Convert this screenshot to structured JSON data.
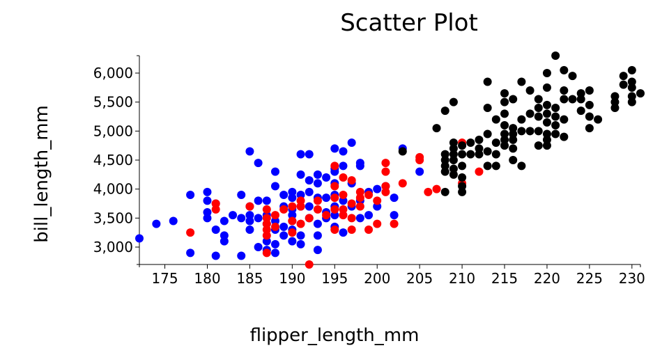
{
  "chart_data": {
    "type": "scatter",
    "title": "Scatter Plot",
    "xlabel": "flipper_length_mm",
    "ylabel": "bill_length_mm",
    "xlim": [
      172,
      231
    ],
    "ylim": [
      2700,
      6300
    ],
    "xticks": [
      175,
      180,
      185,
      190,
      195,
      200,
      205,
      210,
      215,
      220,
      225,
      230
    ],
    "yticks": [
      3000,
      3500,
      4000,
      4500,
      5000,
      5500,
      6000
    ],
    "grid": false,
    "series": [
      {
        "color": "#0000ff",
        "points": [
          [
            172,
            3150
          ],
          [
            174,
            3400
          ],
          [
            176,
            3450
          ],
          [
            178,
            2900
          ],
          [
            178,
            3900
          ],
          [
            180,
            3950
          ],
          [
            180,
            3800
          ],
          [
            180,
            3600
          ],
          [
            180,
            3500
          ],
          [
            181,
            3300
          ],
          [
            181,
            3750
          ],
          [
            181,
            2850
          ],
          [
            182,
            3200
          ],
          [
            182,
            3450
          ],
          [
            182,
            3100
          ],
          [
            183,
            3550
          ],
          [
            184,
            3500
          ],
          [
            184,
            3900
          ],
          [
            184,
            2850
          ],
          [
            185,
            3450
          ],
          [
            185,
            4650
          ],
          [
            185,
            3550
          ],
          [
            185,
            3300
          ],
          [
            185,
            3700
          ],
          [
            186,
            3000
          ],
          [
            186,
            4450
          ],
          [
            186,
            3800
          ],
          [
            186,
            3500
          ],
          [
            187,
            3550
          ],
          [
            187,
            3100
          ],
          [
            187,
            3800
          ],
          [
            187,
            3400
          ],
          [
            187,
            2950
          ],
          [
            188,
            3300
          ],
          [
            188,
            4300
          ],
          [
            188,
            4050
          ],
          [
            188,
            3450
          ],
          [
            188,
            3050
          ],
          [
            188,
            2900
          ],
          [
            189,
            3900
          ],
          [
            189,
            3700
          ],
          [
            189,
            3350
          ],
          [
            189,
            3200
          ],
          [
            190,
            3950
          ],
          [
            190,
            3550
          ],
          [
            190,
            3300
          ],
          [
            190,
            3100
          ],
          [
            190,
            3850
          ],
          [
            190,
            3650
          ],
          [
            190,
            3450
          ],
          [
            191,
            4600
          ],
          [
            191,
            4250
          ],
          [
            191,
            3700
          ],
          [
            191,
            3900
          ],
          [
            191,
            3200
          ],
          [
            191,
            3050
          ],
          [
            192,
            4600
          ],
          [
            192,
            4150
          ],
          [
            192,
            3950
          ],
          [
            192,
            3700
          ],
          [
            192,
            3500
          ],
          [
            193,
            4100
          ],
          [
            193,
            4250
          ],
          [
            193,
            3850
          ],
          [
            193,
            3400
          ],
          [
            193,
            3200
          ],
          [
            193,
            2950
          ],
          [
            194,
            4200
          ],
          [
            194,
            3850
          ],
          [
            194,
            3600
          ],
          [
            194,
            3500
          ],
          [
            195,
            4700
          ],
          [
            195,
            4300
          ],
          [
            195,
            4100
          ],
          [
            195,
            4350
          ],
          [
            195,
            3900
          ],
          [
            195,
            3700
          ],
          [
            195,
            3550
          ],
          [
            195,
            3350
          ],
          [
            196,
            4650
          ],
          [
            196,
            4400
          ],
          [
            196,
            3800
          ],
          [
            196,
            3250
          ],
          [
            197,
            4800
          ],
          [
            197,
            4100
          ],
          [
            197,
            3700
          ],
          [
            198,
            4400
          ],
          [
            198,
            4450
          ],
          [
            198,
            3800
          ],
          [
            198,
            3500
          ],
          [
            199,
            3950
          ],
          [
            199,
            3550
          ],
          [
            200,
            4000
          ],
          [
            200,
            3700
          ],
          [
            201,
            4050
          ],
          [
            202,
            3850
          ],
          [
            202,
            3550
          ],
          [
            203,
            4700
          ],
          [
            205,
            4300
          ]
        ]
      },
      {
        "color": "#ff0000",
        "points": [
          [
            178,
            3250
          ],
          [
            181,
            3650
          ],
          [
            181,
            3750
          ],
          [
            185,
            3700
          ],
          [
            187,
            3650
          ],
          [
            187,
            3500
          ],
          [
            187,
            3400
          ],
          [
            187,
            3300
          ],
          [
            187,
            3200
          ],
          [
            187,
            2900
          ],
          [
            188,
            3550
          ],
          [
            188,
            3350
          ],
          [
            189,
            3650
          ],
          [
            190,
            3700
          ],
          [
            190,
            3450
          ],
          [
            190,
            3250
          ],
          [
            191,
            3800
          ],
          [
            191,
            3400
          ],
          [
            191,
            3700
          ],
          [
            192,
            2700
          ],
          [
            192,
            3500
          ],
          [
            193,
            3800
          ],
          [
            193,
            3650
          ],
          [
            194,
            3550
          ],
          [
            195,
            4400
          ],
          [
            195,
            4050
          ],
          [
            195,
            3850
          ],
          [
            195,
            3650
          ],
          [
            195,
            3300
          ],
          [
            196,
            4200
          ],
          [
            196,
            3900
          ],
          [
            196,
            3650
          ],
          [
            196,
            3550
          ],
          [
            197,
            4150
          ],
          [
            197,
            3750
          ],
          [
            197,
            3500
          ],
          [
            197,
            3300
          ],
          [
            198,
            3950
          ],
          [
            198,
            3850
          ],
          [
            198,
            3700
          ],
          [
            199,
            3900
          ],
          [
            199,
            3300
          ],
          [
            200,
            3800
          ],
          [
            200,
            3400
          ],
          [
            201,
            4450
          ],
          [
            201,
            4300
          ],
          [
            201,
            3950
          ],
          [
            201,
            4050
          ],
          [
            202,
            3400
          ],
          [
            203,
            4100
          ],
          [
            205,
            4550
          ],
          [
            205,
            4500
          ],
          [
            206,
            3950
          ],
          [
            207,
            4000
          ],
          [
            210,
            4800
          ],
          [
            210,
            4100
          ],
          [
            212,
            4300
          ]
        ]
      },
      {
        "color": "#000000",
        "points": [
          [
            203,
            4650
          ],
          [
            207,
            5050
          ],
          [
            208,
            5350
          ],
          [
            208,
            4600
          ],
          [
            208,
            4500
          ],
          [
            208,
            4400
          ],
          [
            208,
            4300
          ],
          [
            208,
            3950
          ],
          [
            209,
            5500
          ],
          [
            209,
            4800
          ],
          [
            209,
            4700
          ],
          [
            209,
            4600
          ],
          [
            209,
            4500
          ],
          [
            209,
            4350
          ],
          [
            209,
            4250
          ],
          [
            210,
            4750
          ],
          [
            210,
            4600
          ],
          [
            210,
            4400
          ],
          [
            210,
            4200
          ],
          [
            210,
            4050
          ],
          [
            210,
            3950
          ],
          [
            211,
            4800
          ],
          [
            211,
            4600
          ],
          [
            212,
            4850
          ],
          [
            212,
            4700
          ],
          [
            212,
            4600
          ],
          [
            213,
            5850
          ],
          [
            213,
            5400
          ],
          [
            213,
            4950
          ],
          [
            213,
            4650
          ],
          [
            213,
            4400
          ],
          [
            214,
            5200
          ],
          [
            214,
            4800
          ],
          [
            214,
            4600
          ],
          [
            214,
            4400
          ],
          [
            215,
            5650
          ],
          [
            215,
            5500
          ],
          [
            215,
            5300
          ],
          [
            215,
            5100
          ],
          [
            215,
            4950
          ],
          [
            215,
            4850
          ],
          [
            215,
            4750
          ],
          [
            216,
            5550
          ],
          [
            216,
            5050
          ],
          [
            216,
            4950
          ],
          [
            216,
            4850
          ],
          [
            216,
            4700
          ],
          [
            216,
            4500
          ],
          [
            217,
            5850
          ],
          [
            217,
            5200
          ],
          [
            217,
            5000
          ],
          [
            217,
            4400
          ],
          [
            218,
            5700
          ],
          [
            218,
            5300
          ],
          [
            218,
            5000
          ],
          [
            219,
            5550
          ],
          [
            219,
            5400
          ],
          [
            219,
            5250
          ],
          [
            219,
            5000
          ],
          [
            219,
            4750
          ],
          [
            220,
            6000
          ],
          [
            220,
            5750
          ],
          [
            220,
            5450
          ],
          [
            220,
            5300
          ],
          [
            220,
            5150
          ],
          [
            220,
            4950
          ],
          [
            220,
            4850
          ],
          [
            220,
            4750
          ],
          [
            221,
            6300
          ],
          [
            221,
            5400
          ],
          [
            221,
            5250
          ],
          [
            221,
            5100
          ],
          [
            221,
            4950
          ],
          [
            222,
            6050
          ],
          [
            222,
            5700
          ],
          [
            222,
            5550
          ],
          [
            222,
            5200
          ],
          [
            222,
            4900
          ],
          [
            223,
            5950
          ],
          [
            223,
            5550
          ],
          [
            224,
            5650
          ],
          [
            224,
            5550
          ],
          [
            224,
            5350
          ],
          [
            225,
            5700
          ],
          [
            225,
            5450
          ],
          [
            225,
            5250
          ],
          [
            225,
            5050
          ],
          [
            226,
            5200
          ],
          [
            228,
            5600
          ],
          [
            228,
            5500
          ],
          [
            228,
            5400
          ],
          [
            229,
            5950
          ],
          [
            229,
            5800
          ],
          [
            230,
            6050
          ],
          [
            230,
            5850
          ],
          [
            230,
            5750
          ],
          [
            230,
            5600
          ],
          [
            230,
            5500
          ],
          [
            231,
            5650
          ]
        ]
      }
    ]
  }
}
